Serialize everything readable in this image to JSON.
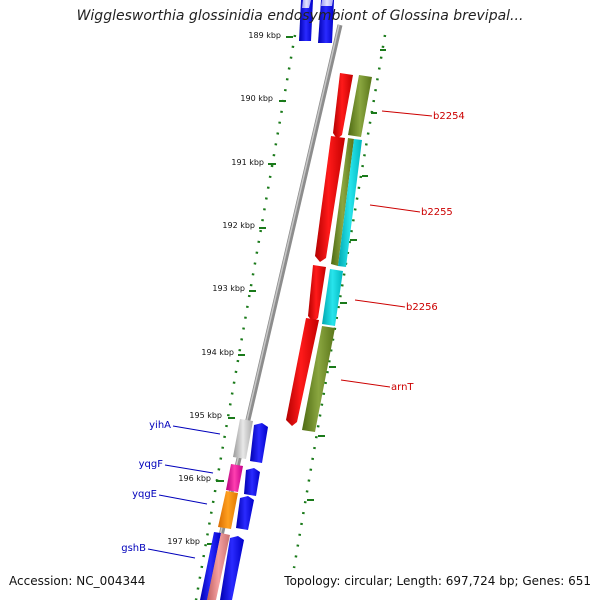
{
  "header": {
    "title": "Wigglesworthia glossinidia endosymbiont of Glossina brevipal..."
  },
  "ticks": [
    "189 kbp",
    "190 kbp",
    "191 kbp",
    "192 kbp",
    "193 kbp",
    "194 kbp",
    "195 kbp",
    "196 kbp",
    "197 kbp"
  ],
  "genes_right": [
    "b2254",
    "b2255",
    "b2256",
    "arnT"
  ],
  "genes_left": [
    "yihA",
    "yqgF",
    "yqgE",
    "gshB"
  ],
  "colors": {
    "forward_label": "#cc0000",
    "reverse_label": "#0000bb",
    "tick": "#1a7a1a",
    "backbone": "#888888"
  },
  "footer": {
    "accession": "Accession: NC_004344",
    "topology": "Topology: circular; Length: 697,724 bp; Genes: 651"
  }
}
